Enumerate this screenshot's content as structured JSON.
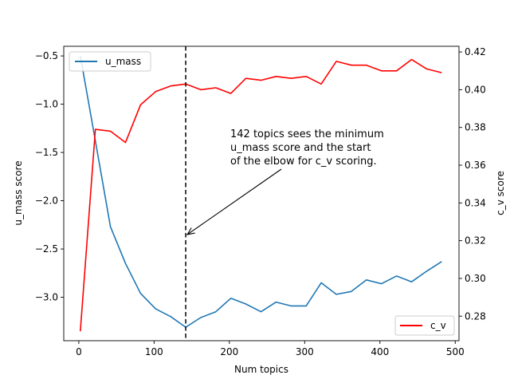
{
  "chart_data": {
    "type": "line",
    "xlabel": "Num topics",
    "ylabel_left": "u_mass score",
    "ylabel_right": "c_v score",
    "xlim": [
      -20,
      505
    ],
    "ylim_left": [
      -3.45,
      -0.4
    ],
    "ylim_right": [
      0.267,
      0.423
    ],
    "x_ticks": [
      "0",
      "100",
      "200",
      "300",
      "400",
      "500"
    ],
    "y_left_ticks": [
      "−0.5",
      "−1.0",
      "−1.5",
      "−2.0",
      "−2.5",
      "−3.0"
    ],
    "y_right_ticks": [
      "0.28",
      "0.30",
      "0.32",
      "0.34",
      "0.36",
      "0.38",
      "0.40",
      "0.42"
    ],
    "grid": false,
    "series": [
      {
        "name": "u_mass",
        "axis": "left",
        "color": "#1f77b4",
        "x": [
          2,
          22,
          42,
          62,
          82,
          102,
          122,
          142,
          162,
          182,
          202,
          222,
          242,
          262,
          282,
          302,
          322,
          342,
          362,
          382,
          402,
          422,
          442,
          462,
          482
        ],
        "values": [
          -0.5,
          -1.38,
          -2.27,
          -2.65,
          -2.96,
          -3.12,
          -3.2,
          -3.31,
          -3.21,
          -3.15,
          -3.01,
          -3.07,
          -3.15,
          -3.05,
          -3.09,
          -3.09,
          -2.85,
          -2.97,
          -2.94,
          -2.82,
          -2.86,
          -2.78,
          -2.84,
          -2.73,
          -2.63
        ]
      },
      {
        "name": "c_v",
        "axis": "right",
        "color": "#ff0000",
        "x": [
          2,
          22,
          42,
          62,
          82,
          102,
          122,
          142,
          162,
          182,
          202,
          222,
          242,
          262,
          282,
          302,
          322,
          342,
          362,
          382,
          402,
          422,
          442,
          462,
          482
        ],
        "values": [
          0.272,
          0.379,
          0.378,
          0.372,
          0.392,
          0.399,
          0.402,
          0.403,
          0.4,
          0.401,
          0.398,
          0.406,
          0.405,
          0.407,
          0.406,
          0.407,
          0.403,
          0.415,
          0.413,
          0.413,
          0.41,
          0.41,
          0.416,
          0.411,
          0.409
        ]
      }
    ],
    "vline_x": 142,
    "annotation": {
      "lines": [
        "142 topics sees the minimum",
        "u_mass score and the start",
        "of the elbow for c_v scoring."
      ],
      "arrow_to": {
        "x": 142,
        "y_left": -2.35
      }
    },
    "legend": [
      {
        "label": "u_mass",
        "color": "#1f77b4",
        "location": "upper left"
      },
      {
        "label": "c_v",
        "color": "#ff0000",
        "location": "lower right"
      }
    ]
  }
}
